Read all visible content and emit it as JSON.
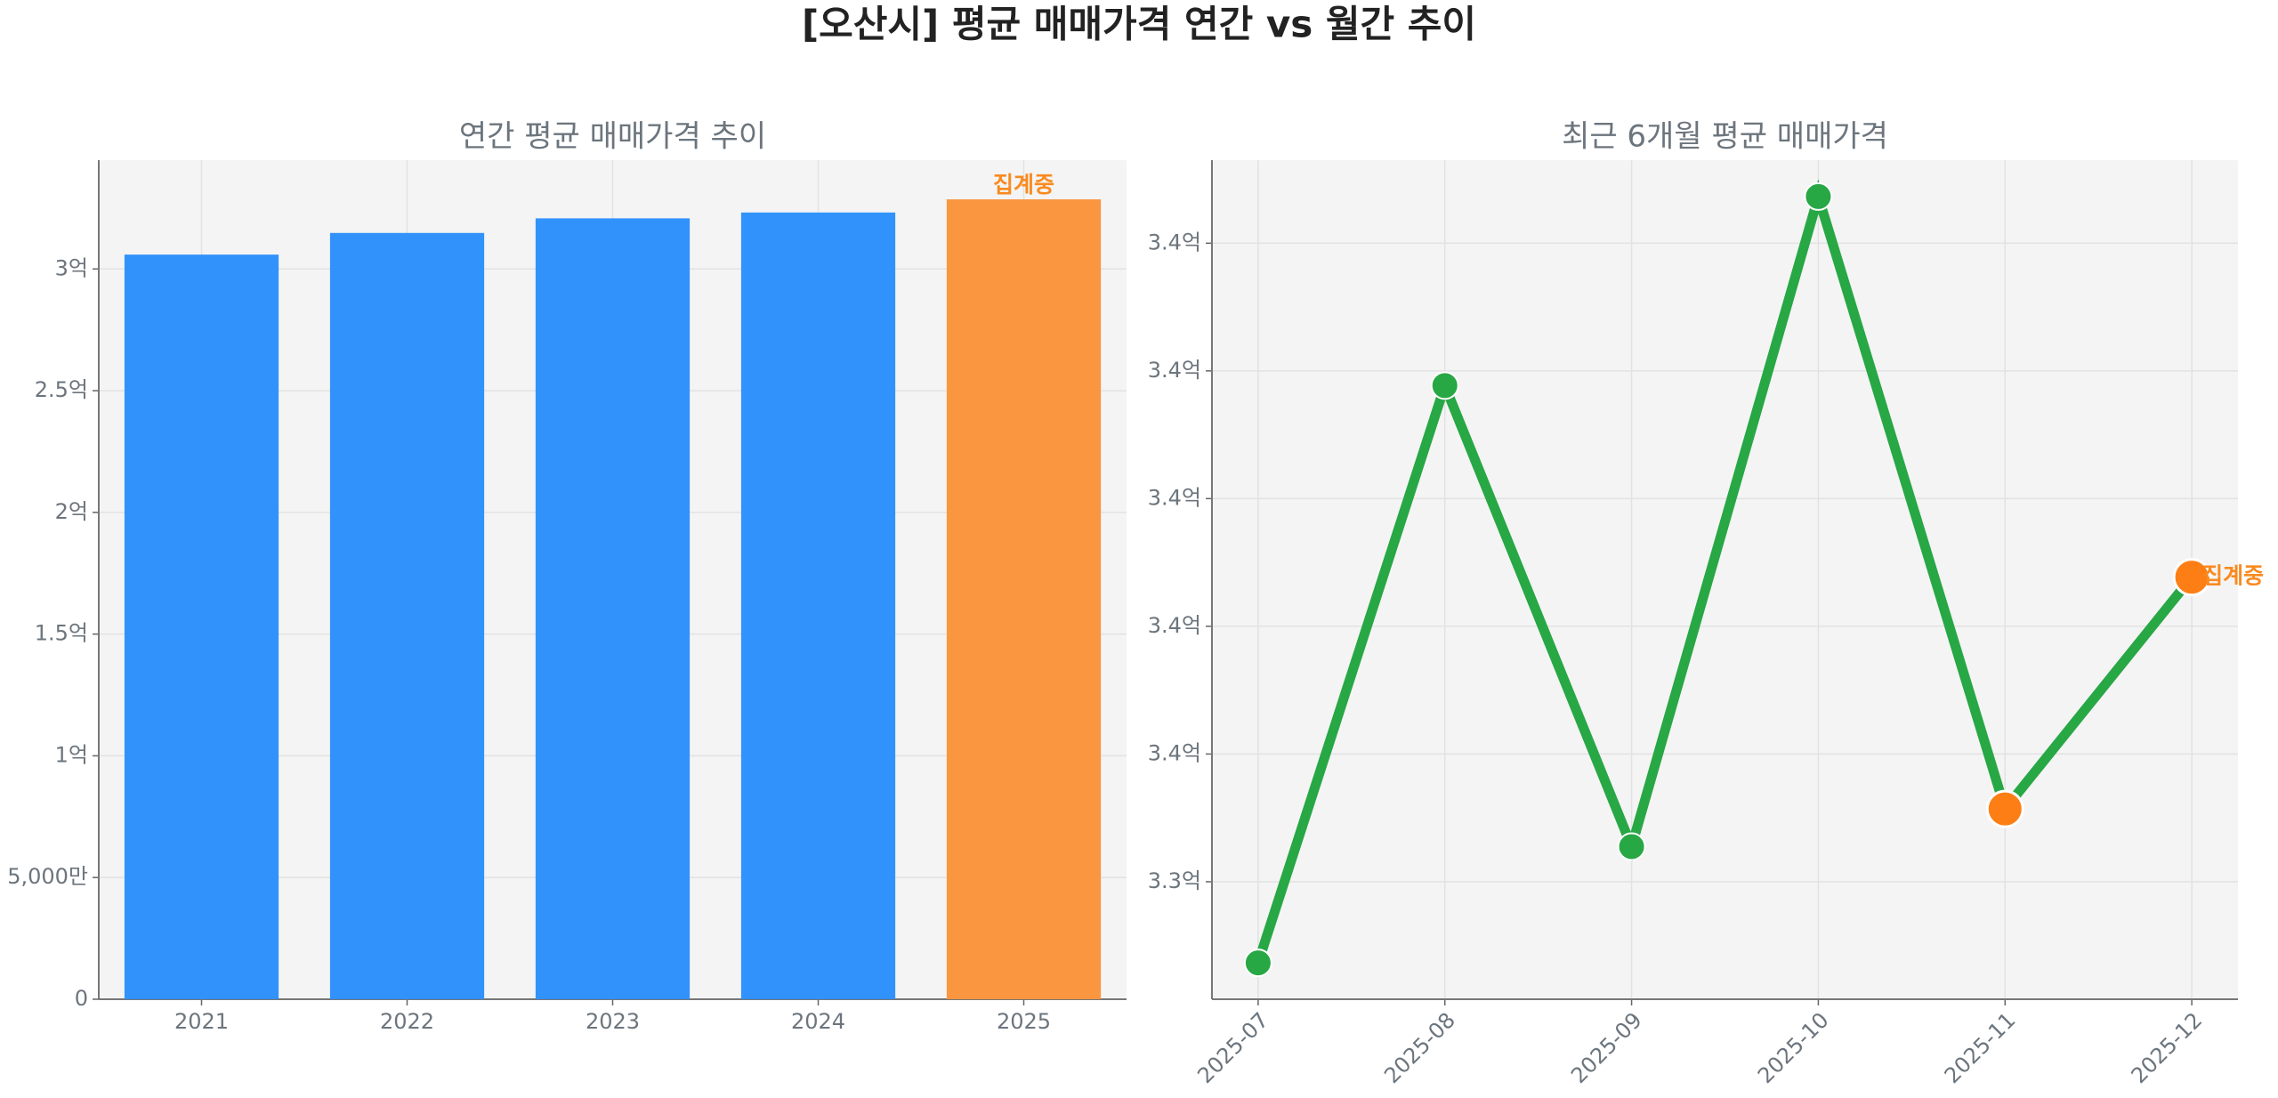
{
  "title": "[오산시] 평균 매매가격 연간 vs 월간 추이",
  "chart_data": [
    {
      "type": "bar",
      "title": "연간 평균 매매가격 추이",
      "categories": [
        "2021",
        "2022",
        "2023",
        "2024",
        "2025"
      ],
      "values": [
        305900000,
        314800000,
        320800000,
        323200000,
        328600000
      ],
      "colors": [
        "#3292fb",
        "#3292fb",
        "#3292fb",
        "#3292fb",
        "#f9963f"
      ],
      "annotation": "집계중",
      "annotation_color": "#f98a1f",
      "ylim": [
        0,
        344700000
      ],
      "yticks": [
        0,
        {
          "value": 50000000,
          "label": "5,000만"
        },
        {
          "value": 100000000,
          "label": "1억"
        },
        {
          "value": 150000000,
          "label": "1.5억"
        },
        {
          "value": 200000000,
          "label": "2억"
        },
        {
          "value": 250000000,
          "label": "2.5억"
        },
        {
          "value": 300000000,
          "label": "3억"
        }
      ],
      "grid": true
    },
    {
      "type": "line",
      "title": "최근 6개월 평균 매매가격",
      "categories": [
        "2025-07",
        "2025-08",
        "2025-09",
        "2025-10",
        "2025-11",
        "2025-12"
      ],
      "values": [
        331730000,
        340770000,
        333550000,
        343730000,
        334140000,
        337770000
      ],
      "color": "#28a745",
      "marker_colors": [
        "#28a745",
        "#28a745",
        "#28a745",
        "#28a745",
        "#fd7e14",
        "#fd7e14"
      ],
      "annotation": "집계중",
      "annotation_color": "#f98a1f",
      "ylim": [
        331160000,
        344300000
      ],
      "yticks": [
        {
          "value": 333000000,
          "label": "3.3억"
        },
        {
          "value": 335000000,
          "label": "3.4억"
        },
        {
          "value": 337000000,
          "label": "3.4억"
        },
        {
          "value": 339000000,
          "label": "3.4억"
        },
        {
          "value": 341000000,
          "label": "3.4억"
        },
        {
          "value": 343000000,
          "label": "3.4억"
        }
      ],
      "grid": true
    }
  ]
}
